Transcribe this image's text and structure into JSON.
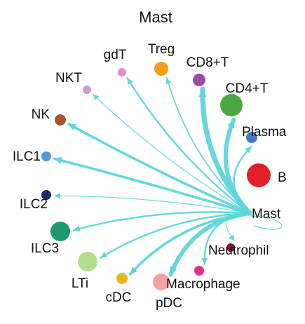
{
  "title": "Mast",
  "edge_color": "#5fd5d9",
  "source": "Mast",
  "nodes": [
    {
      "name": "Mast",
      "color": "#ffffff"
    },
    {
      "name": "gdT",
      "color": "#e98ac3"
    },
    {
      "name": "Treg",
      "color": "#f29d1a"
    },
    {
      "name": "CD8+T",
      "color": "#9b4da3"
    },
    {
      "name": "CD4+T",
      "color": "#4aa843"
    },
    {
      "name": "Plasma",
      "color": "#3b7fbe"
    },
    {
      "name": "B",
      "color": "#e11f26"
    },
    {
      "name": "NKT",
      "color": "#c7a0cd"
    },
    {
      "name": "NK",
      "color": "#a6562a"
    },
    {
      "name": "ILC1",
      "color": "#4f9bd6"
    },
    {
      "name": "ILC2",
      "color": "#1f2a6b"
    },
    {
      "name": "ILC3",
      "color": "#1d9a6c"
    },
    {
      "name": "LTi",
      "color": "#b2de8c"
    },
    {
      "name": "cDC",
      "color": "#e5b91d"
    },
    {
      "name": "pDC",
      "color": "#f7a3a3"
    },
    {
      "name": "Macrophage",
      "color": "#e3318a"
    },
    {
      "name": "Neutrophil",
      "color": "#8a0a39"
    }
  ],
  "edges": [
    {
      "from": "Mast",
      "to": "gdT",
      "weight": 2
    },
    {
      "from": "Mast",
      "to": "Treg",
      "weight": 1.5
    },
    {
      "from": "Mast",
      "to": "CD8+T",
      "weight": 6
    },
    {
      "from": "Mast",
      "to": "CD4+T",
      "weight": 5
    },
    {
      "from": "Mast",
      "to": "Plasma",
      "weight": 2
    },
    {
      "from": "Mast",
      "to": "NKT",
      "weight": 1
    },
    {
      "from": "Mast",
      "to": "NK",
      "weight": 3
    },
    {
      "from": "Mast",
      "to": "ILC1",
      "weight": 3
    },
    {
      "from": "Mast",
      "to": "ILC2",
      "weight": 1
    },
    {
      "from": "Mast",
      "to": "ILC3",
      "weight": 2
    },
    {
      "from": "Mast",
      "to": "LTi",
      "weight": 2
    },
    {
      "from": "Mast",
      "to": "cDC",
      "weight": 3
    },
    {
      "from": "Mast",
      "to": "pDC",
      "weight": 5
    },
    {
      "from": "Mast",
      "to": "Macrophage",
      "weight": 2
    },
    {
      "from": "Mast",
      "to": "Neutrophil",
      "weight": 1
    },
    {
      "from": "Mast",
      "to": "Mast",
      "weight": 1
    }
  ]
}
